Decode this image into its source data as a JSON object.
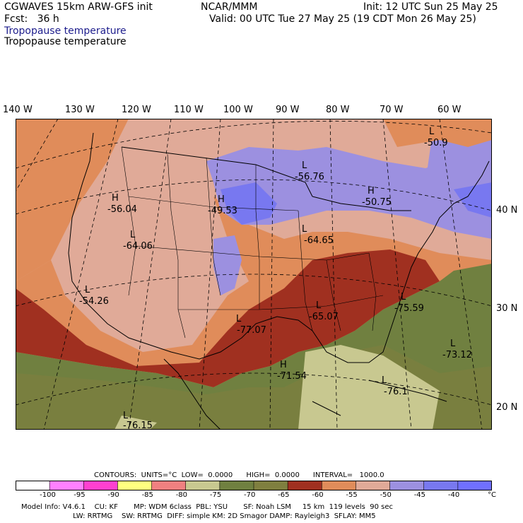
{
  "header": {
    "model": "CGWAVES 15km ARW-GFS init",
    "org": "NCAR/MMM",
    "init": "Init: 12 UTC Sun 25 May 25",
    "fcst": "Fcst:   36 h",
    "valid": "Valid: 00 UTC Tue 27 May 25 (19 CDT Mon 26 May 25)",
    "field1": "Tropopause temperature",
    "field2": "Tropopause temperature"
  },
  "axes": {
    "lon_labels": [
      "140 W",
      "130 W",
      "120 W",
      "110 W",
      "100 W",
      "90 W",
      "80 W",
      "70 W",
      "60 W"
    ],
    "lat_labels": [
      "40 N",
      "30 N",
      "20 N"
    ]
  },
  "map_labels": [
    {
      "kind": "L",
      "value": "-50.9"
    },
    {
      "kind": "L",
      "value": "-56.76"
    },
    {
      "kind": "H",
      "value": "-56.04"
    },
    {
      "kind": "H",
      "value": "-49.53"
    },
    {
      "kind": "H",
      "value": "-50.75"
    },
    {
      "kind": "L",
      "value": "-64.06"
    },
    {
      "kind": "L",
      "value": "-64.65"
    },
    {
      "kind": "L",
      "value": "-54.26"
    },
    {
      "kind": "L",
      "value": "-65.07"
    },
    {
      "kind": "L",
      "value": "-75.59"
    },
    {
      "kind": "L",
      "value": "-77.07"
    },
    {
      "kind": "L",
      "value": "-73.12"
    },
    {
      "kind": "H",
      "value": "-71.54"
    },
    {
      "kind": "L",
      "value": "-76.1"
    },
    {
      "kind": "L",
      "value": "-76.15"
    }
  ],
  "contours": {
    "line": "CONTOURS:  UNITS=°C  LOW=  0.0000      HIGH=  0.0000      INTERVAL=   1000.0"
  },
  "colorbar": {
    "colors": [
      "#ffffff",
      "#ff80ff",
      "#ff40d0",
      "#ffff80",
      "#f08080",
      "#c8c890",
      "#708040",
      "#7f7f3f",
      "#a03020",
      "#e08c5a",
      "#e0aa98",
      "#9c90e0",
      "#7878f0",
      "#7070ff"
    ],
    "tick_labels": [
      "-100",
      "-95",
      "-90",
      "-85",
      "-80",
      "-75",
      "-70",
      "-65",
      "-60",
      "-55",
      "-50",
      "-45",
      "-40"
    ],
    "unit": "°C"
  },
  "footer": {
    "line1": "Model Info: V4.6.1    CU: KF       MP: WDM 6class  PBL: YSU       SF: Noah LSM     15 km  119 levels  90 sec",
    "line2": "                       LW: RRTMG    SW: RRTMG  DIFF: simple KM: 2D Smagor DAMP: Rayleigh3  SFLAY: MM5"
  }
}
